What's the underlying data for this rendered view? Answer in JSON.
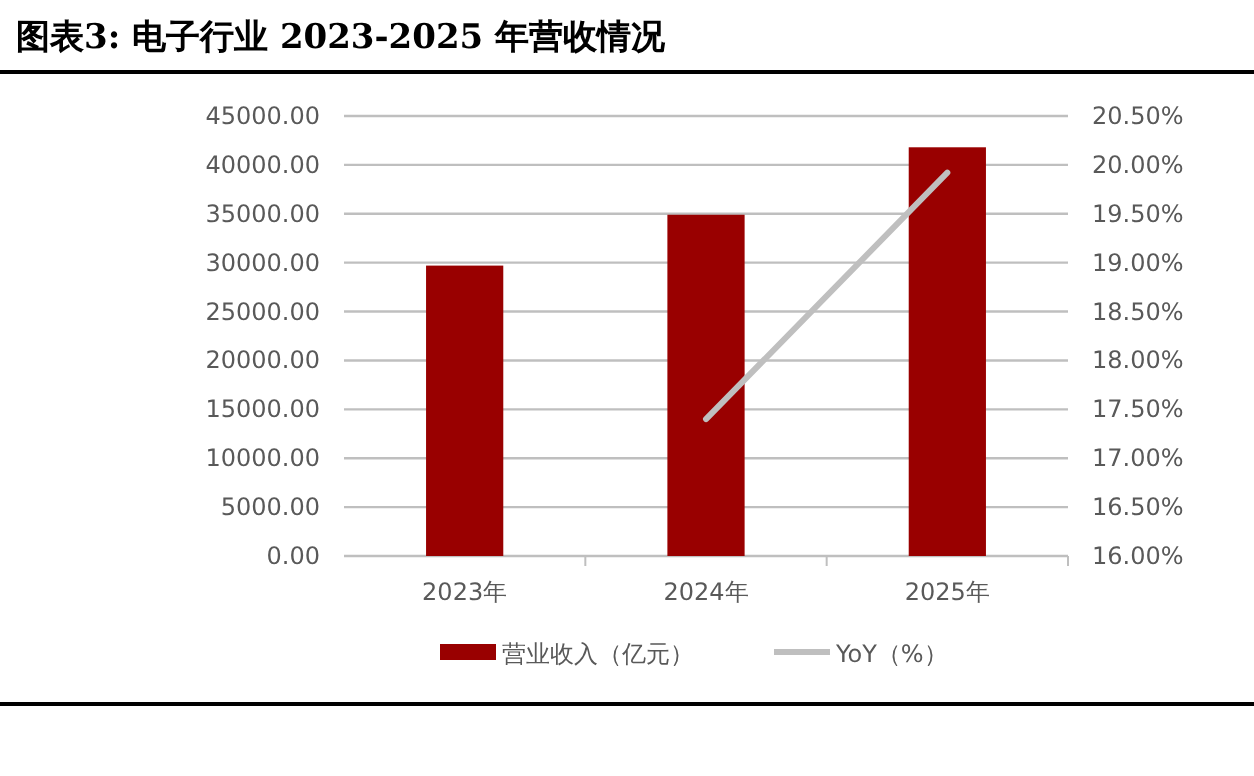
{
  "chart_data": {
    "type": "bar",
    "title": "图表3:    电子行业 2023-2025 年营收情况",
    "categories": [
      "2023年",
      "2024年",
      "2025年"
    ],
    "series": [
      {
        "name": "营业收入（亿元）",
        "color": "#990000",
        "values": [
          29700,
          34900,
          41800
        ]
      },
      {
        "name": "YoY（%）",
        "type": "line",
        "axis": "y2",
        "color": "#bfbfbf",
        "values": [
          null,
          17.4,
          19.92
        ]
      }
    ],
    "ylim": [
      0,
      45000
    ],
    "yticks": [
      {
        "value": 0,
        "label": "0.00"
      },
      {
        "value": 5000,
        "label": "5000.00"
      },
      {
        "value": 10000,
        "label": "10000.00"
      },
      {
        "value": 15000,
        "label": "15000.00"
      },
      {
        "value": 20000,
        "label": "20000.00"
      },
      {
        "value": 25000,
        "label": "25000.00"
      },
      {
        "value": 30000,
        "label": "30000.00"
      },
      {
        "value": 35000,
        "label": "35000.00"
      },
      {
        "value": 40000,
        "label": "40000.00"
      },
      {
        "value": 45000,
        "label": "45000.00"
      }
    ],
    "y2lim": [
      16,
      20.5
    ],
    "y2ticks": [
      {
        "value": 16,
        "label": "16.00%"
      },
      {
        "value": 16.5,
        "label": "16.50%"
      },
      {
        "value": 17,
        "label": "17.00%"
      },
      {
        "value": 17.5,
        "label": "17.50%"
      },
      {
        "value": 18,
        "label": "18.00%"
      },
      {
        "value": 18.5,
        "label": "18.50%"
      },
      {
        "value": 19,
        "label": "19.00%"
      },
      {
        "value": 19.5,
        "label": "19.50%"
      },
      {
        "value": 20,
        "label": "20.00%"
      },
      {
        "value": 20.5,
        "label": "20.50%"
      }
    ],
    "grid": "y",
    "legend": "bottom",
    "marker": "none",
    "line_style": "solid"
  }
}
